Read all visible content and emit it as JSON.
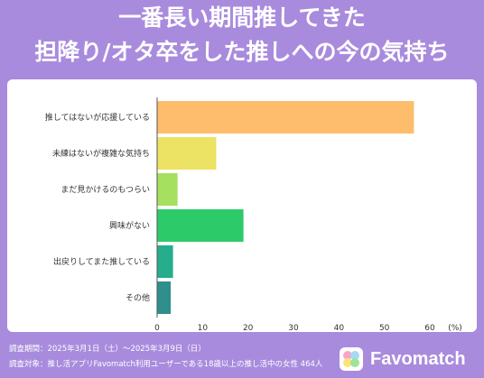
{
  "title_lines": [
    "一番長い期間推してきた",
    "担降り/オタ卒をした推しへの今の気持ち"
  ],
  "chart_data": {
    "type": "bar",
    "orientation": "horizontal",
    "categories": [
      "推してはないが応援している",
      "未練はないが複雑な気持ち",
      "まだ見かけるのもつらい",
      "興味がない",
      "出戻りしてまた推している",
      "その他"
    ],
    "values": [
      56.5,
      13,
      4.5,
      19,
      3.5,
      3
    ],
    "colors": [
      "#fdbd6c",
      "#ece263",
      "#a5e05e",
      "#2dca6a",
      "#25ad8c",
      "#2e8f8c"
    ],
    "xlim": [
      0,
      60
    ],
    "xticks": [
      0,
      10,
      20,
      30,
      40,
      50,
      60
    ],
    "unit_label": "(%)",
    "grid": false
  },
  "footer": {
    "period": "調査期間：2025年3月1日（土）〜2025年3月9日（日）",
    "target": "調査対象：推し活アプリFavomatch利用ユーザーである18歳以上の推し活中の女性 464人"
  },
  "brand": {
    "name": "Favomatch",
    "logo_colors": [
      "#f7a6c8",
      "#a6d8f7",
      "#fde47a",
      "#9fe39a"
    ]
  }
}
